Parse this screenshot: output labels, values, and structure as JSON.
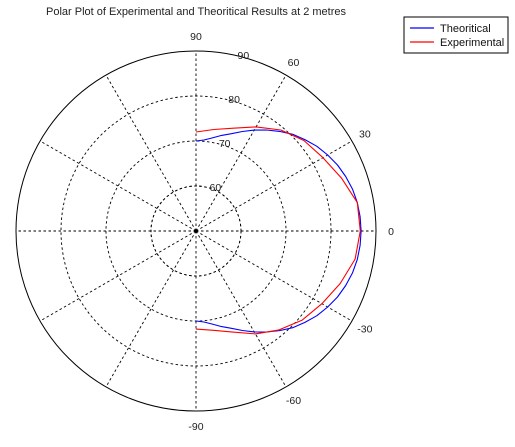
{
  "chart_data": {
    "type": "polar-line",
    "title": "Polar Plot of Experimental and Theoritical Results at 2 metres",
    "angle_unit": "degrees",
    "angle_ticks": [
      {
        "angle": 90,
        "label": "90"
      },
      {
        "angle": 60,
        "label": "60"
      },
      {
        "angle": 30,
        "label": "30"
      },
      {
        "angle": 0,
        "label": "0"
      },
      {
        "angle": -30,
        "label": "-30"
      },
      {
        "angle": -60,
        "label": "-60"
      },
      {
        "angle": -90,
        "label": "-90"
      }
    ],
    "radial_range": [
      50,
      90
    ],
    "radial_ticks": [
      {
        "value": 60,
        "label": "60"
      },
      {
        "value": 70,
        "label": "70"
      },
      {
        "value": 80,
        "label": "80"
      },
      {
        "value": 90,
        "label": "90"
      }
    ],
    "grid": true,
    "legend": {
      "position": "top-right"
    },
    "series": [
      {
        "name": "Theoritical",
        "color": "#0000ff",
        "points": [
          {
            "angle": 90,
            "r": 70.0
          },
          {
            "angle": 85,
            "r": 70.3
          },
          {
            "angle": 80,
            "r": 71.0
          },
          {
            "angle": 75,
            "r": 72.0
          },
          {
            "angle": 70,
            "r": 73.0
          },
          {
            "angle": 65,
            "r": 74.4
          },
          {
            "angle": 60,
            "r": 75.9
          },
          {
            "angle": 55,
            "r": 77.4
          },
          {
            "angle": 50,
            "r": 78.9
          },
          {
            "angle": 45,
            "r": 80.4
          },
          {
            "angle": 40,
            "r": 81.6
          },
          {
            "angle": 35,
            "r": 82.8
          },
          {
            "angle": 30,
            "r": 83.8
          },
          {
            "angle": 25,
            "r": 84.7
          },
          {
            "angle": 20,
            "r": 85.4
          },
          {
            "angle": 15,
            "r": 86.0
          },
          {
            "angle": 10,
            "r": 86.4
          },
          {
            "angle": 5,
            "r": 86.6
          },
          {
            "angle": 0,
            "r": 86.7
          },
          {
            "angle": -5,
            "r": 86.6
          },
          {
            "angle": -10,
            "r": 86.4
          },
          {
            "angle": -15,
            "r": 86.0
          },
          {
            "angle": -20,
            "r": 85.4
          },
          {
            "angle": -25,
            "r": 84.7
          },
          {
            "angle": -30,
            "r": 83.8
          },
          {
            "angle": -35,
            "r": 82.8
          },
          {
            "angle": -40,
            "r": 81.6
          },
          {
            "angle": -45,
            "r": 80.4
          },
          {
            "angle": -50,
            "r": 78.9
          },
          {
            "angle": -55,
            "r": 77.4
          },
          {
            "angle": -60,
            "r": 75.9
          },
          {
            "angle": -65,
            "r": 74.4
          },
          {
            "angle": -70,
            "r": 73.0
          },
          {
            "angle": -75,
            "r": 72.0
          },
          {
            "angle": -80,
            "r": 71.0
          },
          {
            "angle": -85,
            "r": 70.3
          },
          {
            "angle": -90,
            "r": 70.0
          }
        ]
      },
      {
        "name": "Experimental",
        "color": "#ff0000",
        "points": [
          {
            "angle": 90,
            "r": 72.0
          },
          {
            "angle": 80,
            "r": 72.9
          },
          {
            "angle": 70,
            "r": 74.3
          },
          {
            "angle": 60,
            "r": 76.7
          },
          {
            "angle": 50,
            "r": 79.3
          },
          {
            "angle": 40,
            "r": 81.3
          },
          {
            "angle": 30,
            "r": 82.6
          },
          {
            "angle": 20,
            "r": 84.4
          },
          {
            "angle": 10,
            "r": 86.4
          },
          {
            "angle": 0,
            "r": 86.5
          },
          {
            "angle": -10,
            "r": 85.9
          },
          {
            "angle": -20,
            "r": 84.1
          },
          {
            "angle": -30,
            "r": 82.3
          },
          {
            "angle": -40,
            "r": 80.8
          },
          {
            "angle": -50,
            "r": 78.7
          },
          {
            "angle": -60,
            "r": 76.4
          },
          {
            "angle": -70,
            "r": 73.9
          },
          {
            "angle": -80,
            "r": 72.4
          },
          {
            "angle": -90,
            "r": 71.8
          }
        ]
      }
    ]
  }
}
